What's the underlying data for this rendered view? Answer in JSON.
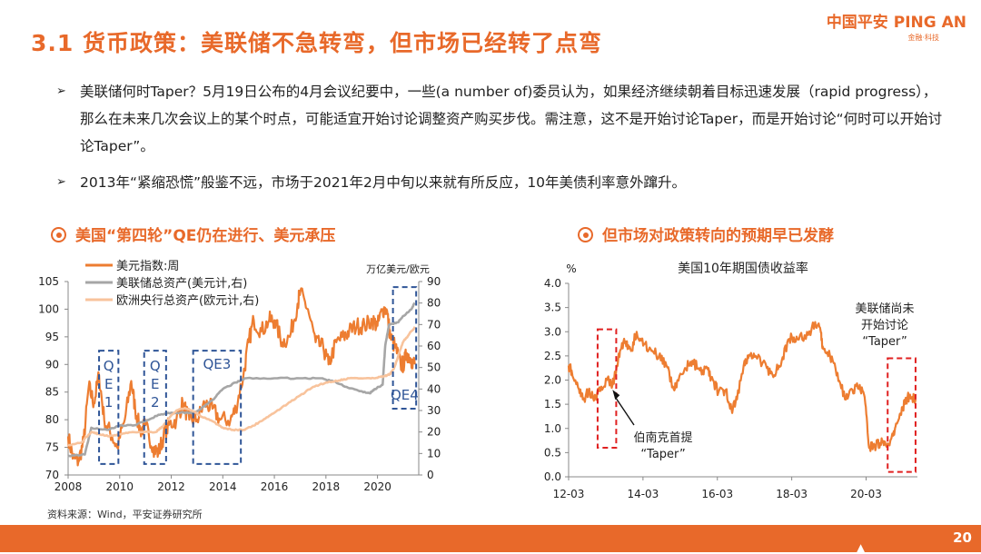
{
  "header": {
    "title": "3.1 货币政策：美联储不急转弯，但市场已经转了点弯",
    "logo_main": "中国平安 PING AN",
    "logo_sub": "金融·科技"
  },
  "bullets": [
    {
      "arrow": "➢",
      "text": "美联储何时Taper？5月19日公布的4月会议纪要中，一些(a number of)委员认为，如果经济继续朝着目标迅速发展（rapid progress），那么在未来几次会议上的某个时点，可能适宜开始讨论调整资产购买步伐。需注意，这不是开始讨论Taper，而是开始讨论“何时可以开始讨论Taper”。"
    },
    {
      "arrow": "➢",
      "text": "2013年“紧缩恐慌”般鉴不远，市场于2021年2月中旬以来就有所反应，10年美债利率意外蹿升。"
    }
  ],
  "sections": {
    "left_title": "美国“第四轮”QE仍在进行、美元承压",
    "right_title": "但市场对政策转向的预期早已发酵"
  },
  "source": "资料来源：Wind，平安证券研究所",
  "page_number": "20",
  "colors": {
    "accent": "#e8692a",
    "dollar": "#ed7d31",
    "fed": "#a6a6a6",
    "ecb": "#f8c39c",
    "box": "#2f5597",
    "red_box": "#e02020"
  },
  "chart_data": [
    {
      "type": "line",
      "title": "",
      "xlabel": "",
      "ylabel_left": "",
      "ylabel_right": "万亿美元/欧元",
      "xlim": [
        2008,
        2021.6
      ],
      "x_ticks": [
        "2008",
        "2010",
        "2012",
        "2014",
        "2016",
        "2018",
        "2020"
      ],
      "ylim_left": [
        70,
        105
      ],
      "y_ticks_left": [
        "70",
        "75",
        "80",
        "85",
        "90",
        "95",
        "100",
        "105"
      ],
      "ylim_right": [
        0,
        90
      ],
      "y_ticks_right": [
        "0",
        "10",
        "20",
        "30",
        "40",
        "50",
        "60",
        "70",
        "80",
        "90"
      ],
      "legend_position": "top-left",
      "series": [
        {
          "name": "美元指数:周",
          "axis": "left",
          "color": "#ed7d31",
          "points": [
            [
              2008.0,
              77
            ],
            [
              2008.2,
              73
            ],
            [
              2008.4,
              72.5
            ],
            [
              2008.6,
              76
            ],
            [
              2008.8,
              86
            ],
            [
              2009.0,
              83
            ],
            [
              2009.2,
              88
            ],
            [
              2009.4,
              80
            ],
            [
              2009.7,
              77
            ],
            [
              2009.9,
              75
            ],
            [
              2010.2,
              80
            ],
            [
              2010.45,
              87
            ],
            [
              2010.6,
              82
            ],
            [
              2010.8,
              78
            ],
            [
              2011.0,
              79
            ],
            [
              2011.3,
              75
            ],
            [
              2011.5,
              74
            ],
            [
              2011.7,
              77
            ],
            [
              2011.9,
              79
            ],
            [
              2012.2,
              80
            ],
            [
              2012.45,
              83
            ],
            [
              2012.7,
              80
            ],
            [
              2013.0,
              80
            ],
            [
              2013.3,
              83
            ],
            [
              2013.6,
              82
            ],
            [
              2013.9,
              80
            ],
            [
              2014.3,
              80
            ],
            [
              2014.5,
              82
            ],
            [
              2014.8,
              88
            ],
            [
              2015.0,
              94
            ],
            [
              2015.2,
              98
            ],
            [
              2015.5,
              96
            ],
            [
              2015.8,
              98
            ],
            [
              2016.0,
              98
            ],
            [
              2016.3,
              94
            ],
            [
              2016.6,
              95
            ],
            [
              2016.9,
              101
            ],
            [
              2017.0,
              103
            ],
            [
              2017.3,
              100
            ],
            [
              2017.6,
              94
            ],
            [
              2017.9,
              93
            ],
            [
              2018.1,
              90
            ],
            [
              2018.4,
              94
            ],
            [
              2018.7,
              95
            ],
            [
              2018.9,
              96
            ],
            [
              2019.2,
              97
            ],
            [
              2019.5,
              97
            ],
            [
              2019.8,
              98
            ],
            [
              2020.0,
              97
            ],
            [
              2020.2,
              100
            ],
            [
              2020.35,
              100
            ],
            [
              2020.5,
              95
            ],
            [
              2020.7,
              93
            ],
            [
              2020.9,
              90
            ],
            [
              2021.0,
              90
            ],
            [
              2021.15,
              92
            ],
            [
              2021.3,
              91
            ],
            [
              2021.45,
              90
            ]
          ]
        },
        {
          "name": "美联储总资产(美元计,右)",
          "axis": "right",
          "color": "#a6a6a6",
          "points": [
            [
              2008.0,
              9
            ],
            [
              2008.65,
              9.5
            ],
            [
              2008.9,
              22
            ],
            [
              2009.5,
              21
            ],
            [
              2010.0,
              23
            ],
            [
              2010.5,
              23
            ],
            [
              2011.0,
              25
            ],
            [
              2011.5,
              28
            ],
            [
              2012.0,
              29
            ],
            [
              2012.5,
              29
            ],
            [
              2012.9,
              29
            ],
            [
              2013.3,
              32
            ],
            [
              2013.7,
              36
            ],
            [
              2014.0,
              40
            ],
            [
              2014.5,
              43
            ],
            [
              2014.9,
              45
            ],
            [
              2016.0,
              45
            ],
            [
              2017.0,
              45
            ],
            [
              2017.8,
              45
            ],
            [
              2018.3,
              43.5
            ],
            [
              2018.8,
              41
            ],
            [
              2019.3,
              39
            ],
            [
              2019.7,
              38
            ],
            [
              2019.9,
              40
            ],
            [
              2020.2,
              42
            ],
            [
              2020.3,
              60
            ],
            [
              2020.45,
              70
            ],
            [
              2020.8,
              71
            ],
            [
              2021.0,
              74
            ],
            [
              2021.3,
              77
            ],
            [
              2021.45,
              80
            ]
          ]
        },
        {
          "name": "欧洲央行总资产(欧元计,右)",
          "axis": "right",
          "color": "#f8c39c",
          "points": [
            [
              2008.0,
              14
            ],
            [
              2008.5,
              15
            ],
            [
              2008.9,
              20
            ],
            [
              2009.2,
              19
            ],
            [
              2009.6,
              18
            ],
            [
              2010.0,
              19
            ],
            [
              2010.5,
              20
            ],
            [
              2010.9,
              20
            ],
            [
              2011.4,
              20
            ],
            [
              2011.7,
              23
            ],
            [
              2011.95,
              27
            ],
            [
              2012.2,
              30
            ],
            [
              2012.5,
              31
            ],
            [
              2012.8,
              30
            ],
            [
              2013.2,
              27
            ],
            [
              2013.6,
              25
            ],
            [
              2014.0,
              22
            ],
            [
              2014.4,
              21
            ],
            [
              2014.8,
              21
            ],
            [
              2015.2,
              23
            ],
            [
              2015.6,
              26
            ],
            [
              2016.0,
              29
            ],
            [
              2016.5,
              33
            ],
            [
              2017.0,
              37
            ],
            [
              2017.5,
              41
            ],
            [
              2018.0,
              43
            ],
            [
              2018.5,
              44
            ],
            [
              2018.9,
              45
            ],
            [
              2019.5,
              45
            ],
            [
              2019.9,
              45
            ],
            [
              2020.3,
              46
            ],
            [
              2020.5,
              47
            ],
            [
              2020.65,
              50
            ],
            [
              2020.85,
              57
            ],
            [
              2021.0,
              62
            ],
            [
              2021.2,
              65
            ],
            [
              2021.45,
              69
            ]
          ]
        }
      ],
      "annotations": [
        {
          "label": "Q\nE\n1",
          "x_range": [
            2009.2,
            2009.95
          ],
          "y_range": [
            72,
            92.5
          ]
        },
        {
          "label": "Q\nE\n2",
          "x_range": [
            2010.95,
            2011.8
          ],
          "y_range": [
            72,
            92.5
          ]
        },
        {
          "label": "QE3",
          "x_range": [
            2012.85,
            2014.7
          ],
          "y_range": [
            72,
            92.5
          ]
        },
        {
          "label": "QE4",
          "x_range": [
            2020.6,
            2021.5
          ],
          "y_range": [
            82,
            104
          ]
        }
      ]
    },
    {
      "type": "line",
      "title": "美国10年期国债收益率",
      "xlabel": "",
      "ylabel": "%",
      "xlim": [
        2012.17,
        2021.55
      ],
      "x_ticks": [
        "12-03",
        "14-03",
        "16-03",
        "18-03",
        "20-03"
      ],
      "ylim": [
        0.0,
        4.0
      ],
      "y_ticks": [
        "0.0",
        "0.5",
        "1.0",
        "1.5",
        "2.0",
        "2.5",
        "3.0",
        "3.5",
        "4.0"
      ],
      "series": [
        {
          "name": "美国10年期国债收益率",
          "color": "#ed7d31",
          "points": [
            [
              2012.17,
              2.3
            ],
            [
              2012.25,
              2.2
            ],
            [
              2012.45,
              1.8
            ],
            [
              2012.55,
              1.6
            ],
            [
              2012.7,
              1.75
            ],
            [
              2012.9,
              1.65
            ],
            [
              2013.0,
              1.85
            ],
            [
              2013.2,
              2.0
            ],
            [
              2013.35,
              1.9
            ],
            [
              2013.45,
              2.2
            ],
            [
              2013.55,
              2.6
            ],
            [
              2013.7,
              2.8
            ],
            [
              2013.85,
              2.6
            ],
            [
              2014.0,
              3.0
            ],
            [
              2014.2,
              2.75
            ],
            [
              2014.4,
              2.6
            ],
            [
              2014.6,
              2.5
            ],
            [
              2014.8,
              2.3
            ],
            [
              2015.0,
              1.8
            ],
            [
              2015.1,
              2.0
            ],
            [
              2015.3,
              2.25
            ],
            [
              2015.5,
              2.4
            ],
            [
              2015.7,
              2.2
            ],
            [
              2015.9,
              2.25
            ],
            [
              2016.0,
              2.05
            ],
            [
              2016.2,
              1.75
            ],
            [
              2016.4,
              1.8
            ],
            [
              2016.55,
              1.4
            ],
            [
              2016.7,
              1.6
            ],
            [
              2016.9,
              2.4
            ],
            [
              2017.0,
              2.45
            ],
            [
              2017.2,
              2.5
            ],
            [
              2017.5,
              2.25
            ],
            [
              2017.7,
              2.1
            ],
            [
              2017.9,
              2.4
            ],
            [
              2018.1,
              2.85
            ],
            [
              2018.3,
              2.9
            ],
            [
              2018.55,
              2.85
            ],
            [
              2018.8,
              3.2
            ],
            [
              2018.95,
              3.0
            ],
            [
              2019.0,
              2.7
            ],
            [
              2019.2,
              2.5
            ],
            [
              2019.4,
              2.15
            ],
            [
              2019.6,
              1.6
            ],
            [
              2019.8,
              1.8
            ],
            [
              2020.0,
              1.9
            ],
            [
              2020.15,
              1.5
            ],
            [
              2020.25,
              0.6
            ],
            [
              2020.4,
              0.65
            ],
            [
              2020.55,
              0.7
            ],
            [
              2020.7,
              0.65
            ],
            [
              2020.9,
              0.85
            ],
            [
              2021.0,
              1.1
            ],
            [
              2021.15,
              1.4
            ],
            [
              2021.25,
              1.6
            ],
            [
              2021.35,
              1.7
            ],
            [
              2021.5,
              1.6
            ]
          ]
        }
      ],
      "annotations": [
        {
          "label": "伯南克首提\n“Taper”",
          "arrow_to": [
            2013.35,
            1.8
          ]
        },
        {
          "label": "美联储尚未\n开始讨论\n“Taper”"
        }
      ],
      "highlight_boxes": [
        {
          "x_range": [
            2012.95,
            2013.45
          ],
          "y_range": [
            0.6,
            3.05
          ]
        },
        {
          "x_range": [
            2020.75,
            2021.5
          ],
          "y_range": [
            0.1,
            2.45
          ]
        }
      ]
    }
  ]
}
